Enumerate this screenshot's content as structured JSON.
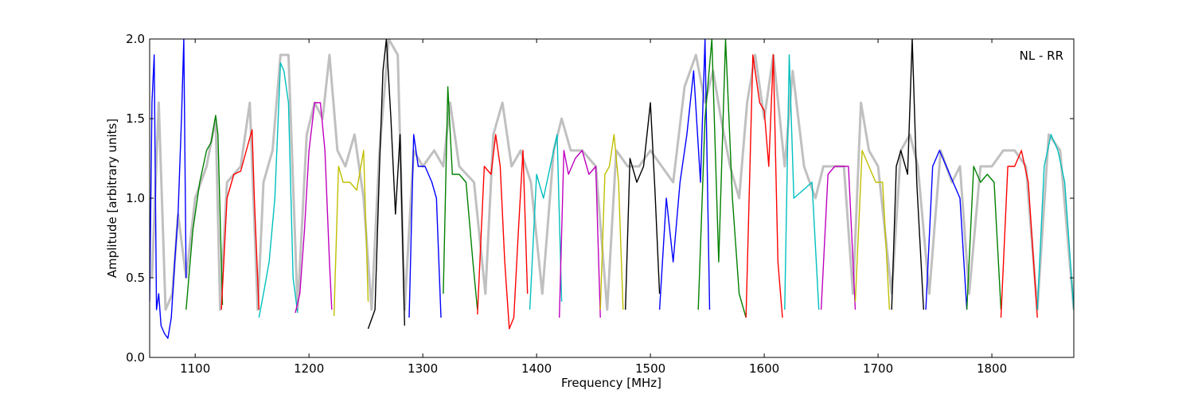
{
  "chart_data": {
    "type": "line",
    "title": "",
    "annotation": "NL - RR",
    "xlabel": "Frequency [MHz]",
    "ylabel": "Amplitude [arbitrary units]",
    "xlim": [
      1060,
      1872
    ],
    "ylim": [
      0.0,
      2.0
    ],
    "grid": false,
    "x_ticks": [
      1100,
      1200,
      1300,
      1400,
      1500,
      1600,
      1700,
      1800
    ],
    "x_tick_labels": [
      "1100",
      "1200",
      "1300",
      "1400",
      "1500",
      "1600",
      "1700",
      "1800"
    ],
    "y_ticks": [
      0.0,
      0.5,
      1.0,
      1.5,
      2.0
    ],
    "y_tick_labels": [
      "0.0",
      "0.5",
      "1.0",
      "1.5",
      "2.0"
    ],
    "background_series": {
      "color": "#c0c0c0",
      "x": [
        1062,
        1068,
        1074,
        1080,
        1085,
        1092,
        1100,
        1110,
        1118,
        1122,
        1128,
        1140,
        1148,
        1155,
        1160,
        1168,
        1175,
        1182,
        1190,
        1198,
        1205,
        1212,
        1218,
        1225,
        1232,
        1240,
        1248,
        1255,
        1262,
        1270,
        1278,
        1284,
        1292,
        1300,
        1310,
        1318,
        1324,
        1332,
        1345,
        1355,
        1362,
        1370,
        1378,
        1386,
        1395,
        1405,
        1415,
        1422,
        1430,
        1440,
        1452,
        1462,
        1470,
        1480,
        1490,
        1500,
        1510,
        1520,
        1530,
        1540,
        1548,
        1555,
        1562,
        1570,
        1578,
        1585,
        1592,
        1600,
        1608,
        1618,
        1625,
        1635,
        1645,
        1652,
        1660,
        1670,
        1678,
        1685,
        1692,
        1700,
        1712,
        1720,
        1728,
        1735,
        1745,
        1755,
        1765,
        1772,
        1780,
        1790,
        1800,
        1810,
        1820,
        1830,
        1840,
        1850,
        1860,
        1872
      ],
      "y": [
        0.5,
        1.6,
        0.3,
        0.4,
        0.9,
        0.5,
        1.0,
        1.2,
        1.5,
        0.3,
        1.1,
        1.2,
        1.6,
        0.3,
        1.1,
        1.3,
        1.9,
        1.9,
        0.3,
        1.4,
        1.6,
        1.5,
        1.9,
        1.3,
        1.2,
        1.4,
        1.0,
        0.3,
        1.3,
        2.0,
        1.9,
        0.3,
        1.3,
        1.2,
        1.3,
        1.2,
        1.6,
        1.2,
        1.1,
        0.4,
        1.4,
        1.6,
        1.2,
        1.3,
        1.1,
        0.4,
        1.3,
        1.5,
        1.3,
        1.3,
        1.2,
        0.3,
        1.3,
        1.2,
        1.2,
        1.3,
        1.2,
        1.1,
        1.7,
        1.9,
        1.6,
        1.8,
        1.5,
        1.2,
        1.0,
        1.6,
        1.9,
        1.5,
        1.9,
        1.2,
        1.8,
        1.2,
        1.0,
        1.2,
        1.2,
        1.2,
        0.4,
        1.6,
        1.3,
        1.2,
        0.4,
        1.3,
        1.4,
        1.2,
        0.4,
        1.3,
        1.1,
        1.2,
        0.4,
        1.2,
        1.2,
        1.3,
        1.3,
        1.2,
        0.3,
        1.4,
        1.3,
        0.3
      ]
    },
    "series": [
      {
        "color": "#0000ff",
        "x": [
          1060,
          1062,
          1064,
          1066,
          1068,
          1070,
          1073,
          1076,
          1079,
          1082,
          1085,
          1088,
          1090,
          1092
        ],
        "y": [
          0.35,
          1.6,
          1.9,
          0.3,
          0.4,
          0.2,
          0.15,
          0.12,
          0.25,
          0.6,
          0.9,
          1.5,
          2.0,
          0.5
        ]
      },
      {
        "color": "#008000",
        "x": [
          1092,
          1098,
          1104,
          1110,
          1114,
          1118,
          1120,
          1124
        ],
        "y": [
          0.3,
          0.8,
          1.1,
          1.3,
          1.35,
          1.52,
          1.4,
          0.33
        ]
      },
      {
        "color": "#ff0000",
        "x": [
          1123,
          1128,
          1134,
          1140,
          1145,
          1150,
          1152,
          1156
        ],
        "y": [
          0.3,
          1.0,
          1.15,
          1.17,
          1.3,
          1.43,
          1.0,
          0.3
        ]
      },
      {
        "color": "#00bfbf",
        "x": [
          1156,
          1160,
          1165,
          1170,
          1175,
          1178,
          1182,
          1186,
          1190
        ],
        "y": [
          0.25,
          0.4,
          0.6,
          1.0,
          1.85,
          1.8,
          1.6,
          0.5,
          0.28
        ]
      },
      {
        "color": "#bf00bf",
        "x": [
          1188,
          1192,
          1196,
          1200,
          1205,
          1210,
          1214,
          1218,
          1220
        ],
        "y": [
          0.28,
          0.4,
          0.8,
          1.3,
          1.6,
          1.6,
          1.3,
          0.6,
          0.3
        ]
      },
      {
        "color": "#bfbf00",
        "x": [
          1222,
          1226,
          1230,
          1236,
          1242,
          1248,
          1252
        ],
        "y": [
          0.26,
          1.2,
          1.1,
          1.1,
          1.05,
          1.3,
          0.35
        ]
      },
      {
        "color": "#000000",
        "x": [
          1252,
          1258,
          1262,
          1265,
          1268,
          1272,
          1276,
          1280,
          1284
        ],
        "y": [
          0.18,
          0.3,
          1.2,
          1.8,
          2.0,
          1.5,
          0.9,
          1.4,
          0.2
        ]
      },
      {
        "color": "#0000ff",
        "x": [
          1288,
          1292,
          1296,
          1302,
          1308,
          1312,
          1316
        ],
        "y": [
          0.25,
          1.4,
          1.2,
          1.2,
          1.1,
          1.0,
          0.25
        ]
      },
      {
        "color": "#008000",
        "x": [
          1318,
          1322,
          1326,
          1332,
          1338,
          1344,
          1348
        ],
        "y": [
          0.4,
          1.7,
          1.15,
          1.15,
          1.1,
          0.6,
          0.3
        ]
      },
      {
        "color": "#ff0000",
        "x": [
          1348,
          1354,
          1360,
          1364,
          1368,
          1372,
          1376,
          1380,
          1384,
          1388,
          1392
        ],
        "y": [
          0.27,
          1.2,
          1.15,
          1.4,
          1.2,
          0.6,
          0.18,
          0.25,
          0.8,
          1.3,
          0.4
        ]
      },
      {
        "color": "#00bfbf",
        "x": [
          1394,
          1400,
          1406,
          1412,
          1418,
          1422
        ],
        "y": [
          0.3,
          1.15,
          1.0,
          1.2,
          1.4,
          0.35
        ]
      },
      {
        "color": "#bf00bf",
        "x": [
          1420,
          1424,
          1428,
          1434,
          1440,
          1446,
          1452,
          1456
        ],
        "y": [
          0.25,
          1.3,
          1.15,
          1.25,
          1.3,
          1.15,
          1.2,
          0.25
        ]
      },
      {
        "color": "#bfbf00",
        "x": [
          1456,
          1460,
          1464,
          1468,
          1472,
          1476
        ],
        "y": [
          0.3,
          1.15,
          1.2,
          1.4,
          1.1,
          0.3
        ]
      },
      {
        "color": "#000000",
        "x": [
          1478,
          1482,
          1488,
          1494,
          1500,
          1504,
          1508
        ],
        "y": [
          0.3,
          1.25,
          1.1,
          1.2,
          1.6,
          1.05,
          0.4
        ]
      },
      {
        "color": "#0000ff",
        "x": [
          1508,
          1514,
          1520,
          1526,
          1532,
          1538,
          1544,
          1548,
          1552
        ],
        "y": [
          0.3,
          1.0,
          0.6,
          1.1,
          1.4,
          1.8,
          1.1,
          2.0,
          0.3
        ]
      },
      {
        "color": "#008000",
        "x": [
          1542,
          1548,
          1554,
          1560,
          1566,
          1572,
          1578,
          1584
        ],
        "y": [
          0.3,
          1.5,
          2.0,
          0.6,
          2.0,
          1.0,
          0.4,
          0.25
        ]
      },
      {
        "color": "#ff0000",
        "x": [
          1584,
          1590,
          1596,
          1600,
          1604,
          1608,
          1612,
          1616
        ],
        "y": [
          0.25,
          1.9,
          1.6,
          1.55,
          1.2,
          1.9,
          0.6,
          0.25
        ]
      },
      {
        "color": "#00bfbf",
        "x": [
          1618,
          1622,
          1626,
          1634,
          1642,
          1648
        ],
        "y": [
          0.3,
          1.9,
          1.0,
          1.05,
          1.1,
          0.3
        ]
      },
      {
        "color": "#bf00bf",
        "x": [
          1650,
          1656,
          1662,
          1668,
          1674,
          1680
        ],
        "y": [
          0.3,
          1.15,
          1.2,
          1.2,
          1.2,
          0.3
        ]
      },
      {
        "color": "#bfbf00",
        "x": [
          1680,
          1686,
          1692,
          1698,
          1704,
          1710
        ],
        "y": [
          0.35,
          1.3,
          1.2,
          1.1,
          1.1,
          0.3
        ]
      },
      {
        "color": "#000000",
        "x": [
          1712,
          1716,
          1720,
          1726,
          1730,
          1734,
          1740
        ],
        "y": [
          0.3,
          1.2,
          1.3,
          1.15,
          2.0,
          1.1,
          0.3
        ]
      },
      {
        "color": "#0000ff",
        "x": [
          1742,
          1748,
          1754,
          1760,
          1766,
          1772,
          1778
        ],
        "y": [
          0.3,
          1.2,
          1.3,
          1.2,
          1.1,
          1.0,
          0.3
        ]
      },
      {
        "color": "#008000",
        "x": [
          1778,
          1784,
          1790,
          1796,
          1802,
          1808
        ],
        "y": [
          0.3,
          1.2,
          1.1,
          1.15,
          1.1,
          0.3
        ]
      },
      {
        "color": "#ff0000",
        "x": [
          1808,
          1814,
          1820,
          1826,
          1832,
          1840
        ],
        "y": [
          0.25,
          1.2,
          1.2,
          1.3,
          1.1,
          0.25
        ]
      },
      {
        "color": "#00bfbf",
        "x": [
          1840,
          1846,
          1852,
          1858,
          1864,
          1872
        ],
        "y": [
          0.3,
          1.2,
          1.4,
          1.3,
          1.1,
          0.3
        ]
      }
    ]
  }
}
